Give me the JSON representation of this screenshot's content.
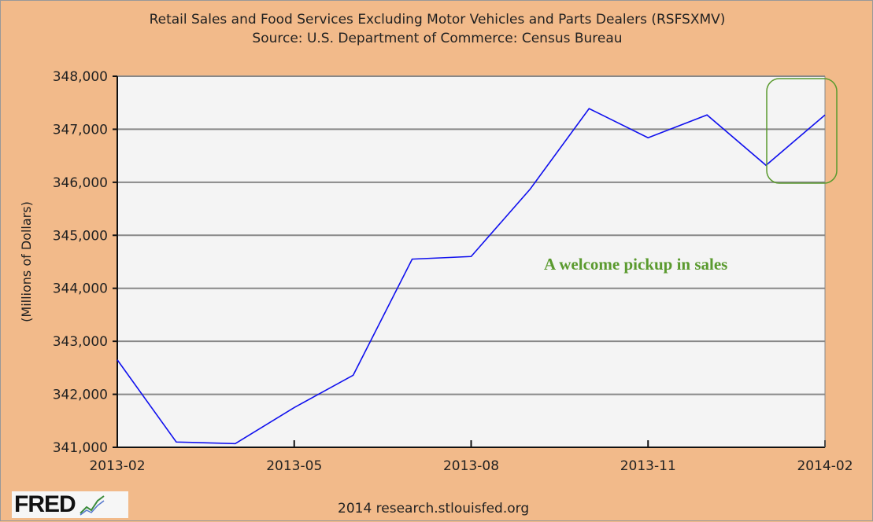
{
  "chart_data": {
    "type": "line",
    "title": "Retail Sales and Food Services Excluding Motor Vehicles and Parts Dealers (RSFSXMV)",
    "subtitle": "Source: U.S. Department of Commerce: Census Bureau",
    "xlabel": "",
    "ylabel": "(Millions of Dollars)",
    "ylim": [
      341000,
      348000
    ],
    "yticks": [
      "341,000",
      "342,000",
      "343,000",
      "344,000",
      "345,000",
      "346,000",
      "347,000",
      "348,000"
    ],
    "xticks": [
      "2013-02",
      "2013-05",
      "2013-08",
      "2013-11",
      "2014-02"
    ],
    "grid": true,
    "series": [
      {
        "name": "RSFSXMV",
        "color": "#1010ee",
        "x": [
          "2013-02",
          "2013-03",
          "2013-04",
          "2013-05",
          "2013-06",
          "2013-07",
          "2013-08",
          "2013-09",
          "2013-10",
          "2013-11",
          "2013-12",
          "2014-01",
          "2014-02"
        ],
        "values": [
          342650,
          341100,
          341070,
          341750,
          342360,
          344550,
          344600,
          345870,
          347390,
          346840,
          347270,
          346320,
          347270
        ]
      }
    ],
    "annotation": {
      "text": "A welcome pickup in sales",
      "color": "#5a9a2e"
    }
  },
  "footer": {
    "logo": "FRED",
    "source": "2014 research.stlouisfed.org"
  }
}
